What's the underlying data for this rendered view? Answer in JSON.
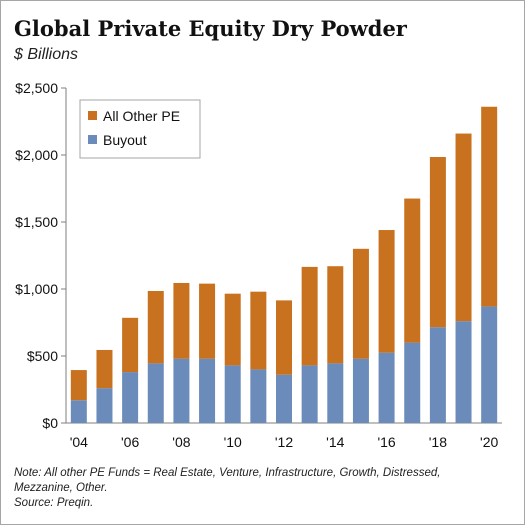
{
  "header": {
    "title": "Global Private Equity Dry Powder",
    "subtitle": "$ Billions"
  },
  "chart_data": {
    "type": "bar",
    "stacked": true,
    "years": [
      2004,
      2005,
      2006,
      2007,
      2008,
      2009,
      2010,
      2011,
      2012,
      2013,
      2014,
      2015,
      2016,
      2017,
      2018,
      2019,
      2020
    ],
    "x_tick_labels": [
      "'04",
      "'06",
      "'08",
      "'10",
      "'12",
      "'14",
      "'16",
      "'18",
      "'20"
    ],
    "y_tick_labels": [
      "$0",
      "$500",
      "$1,000",
      "$1,500",
      "$2,000",
      "$2,500"
    ],
    "y_ticks": [
      0,
      500,
      1000,
      1500,
      2000,
      2500
    ],
    "ylim": [
      0,
      2500
    ],
    "series": [
      {
        "name": "Buyout",
        "color": "#6b8cba",
        "values": [
          170,
          260,
          380,
          445,
          480,
          480,
          430,
          400,
          360,
          430,
          445,
          480,
          525,
          600,
          715,
          760,
          870
        ]
      },
      {
        "name": "All Other PE",
        "color": "#c8711e",
        "values": [
          225,
          285,
          405,
          540,
          565,
          560,
          535,
          580,
          555,
          735,
          725,
          820,
          915,
          1075,
          1270,
          1400,
          1490
        ]
      }
    ],
    "legend": {
      "position": "top-left",
      "order": [
        "All Other PE",
        "Buyout"
      ]
    },
    "grid": false
  },
  "notes": {
    "line1": "Note: All other PE Funds = Real Estate, Venture, Infrastructure, Growth, Distressed,",
    "line2": "Mezzanine, Other.",
    "line3": "Source: Preqin."
  }
}
